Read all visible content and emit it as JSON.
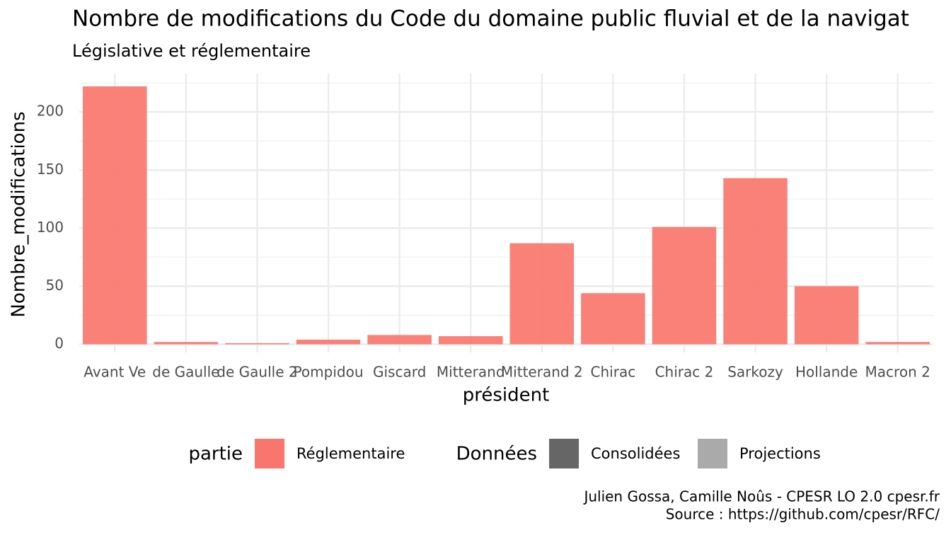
{
  "chart_data": {
    "type": "bar",
    "title": "Nombre de modifications du Code du domaine public fluvial et de la navigat",
    "subtitle": "Législative et réglementaire",
    "x_label": "président",
    "y_label": "Nombre_modifications",
    "categories": [
      "Avant Ve",
      "de Gaulle",
      "de Gaulle 2",
      "Pompidou",
      "Giscard",
      "Mitterand",
      "Mitterand 2",
      "Chirac",
      "Chirac 2",
      "Sarkozy",
      "Hollande",
      "Macron 2"
    ],
    "series": [
      {
        "name": "Réglementaire",
        "color": "#F8766D",
        "values": [
          222,
          2,
          1,
          4,
          8,
          7,
          87,
          44,
          101,
          143,
          50,
          2
        ]
      }
    ],
    "ylim": [
      -7,
      233
    ],
    "yticks": [
      0,
      50,
      100,
      150,
      200
    ],
    "y_minor_ticks": [
      25,
      75,
      125,
      175,
      225
    ],
    "grid": true,
    "legend_title": "partie",
    "data_legend": {
      "title": "Données",
      "entries": [
        {
          "name": "Consolidées",
          "color": "#666666"
        },
        {
          "name": "Projections",
          "color": "#AAAAAA"
        }
      ]
    },
    "caption": [
      "Julien Gossa, Camille Noûs - CPESR LO 2.0 cpesr.fr",
      "Source : https://github.com/cpesr/RFC/"
    ]
  }
}
